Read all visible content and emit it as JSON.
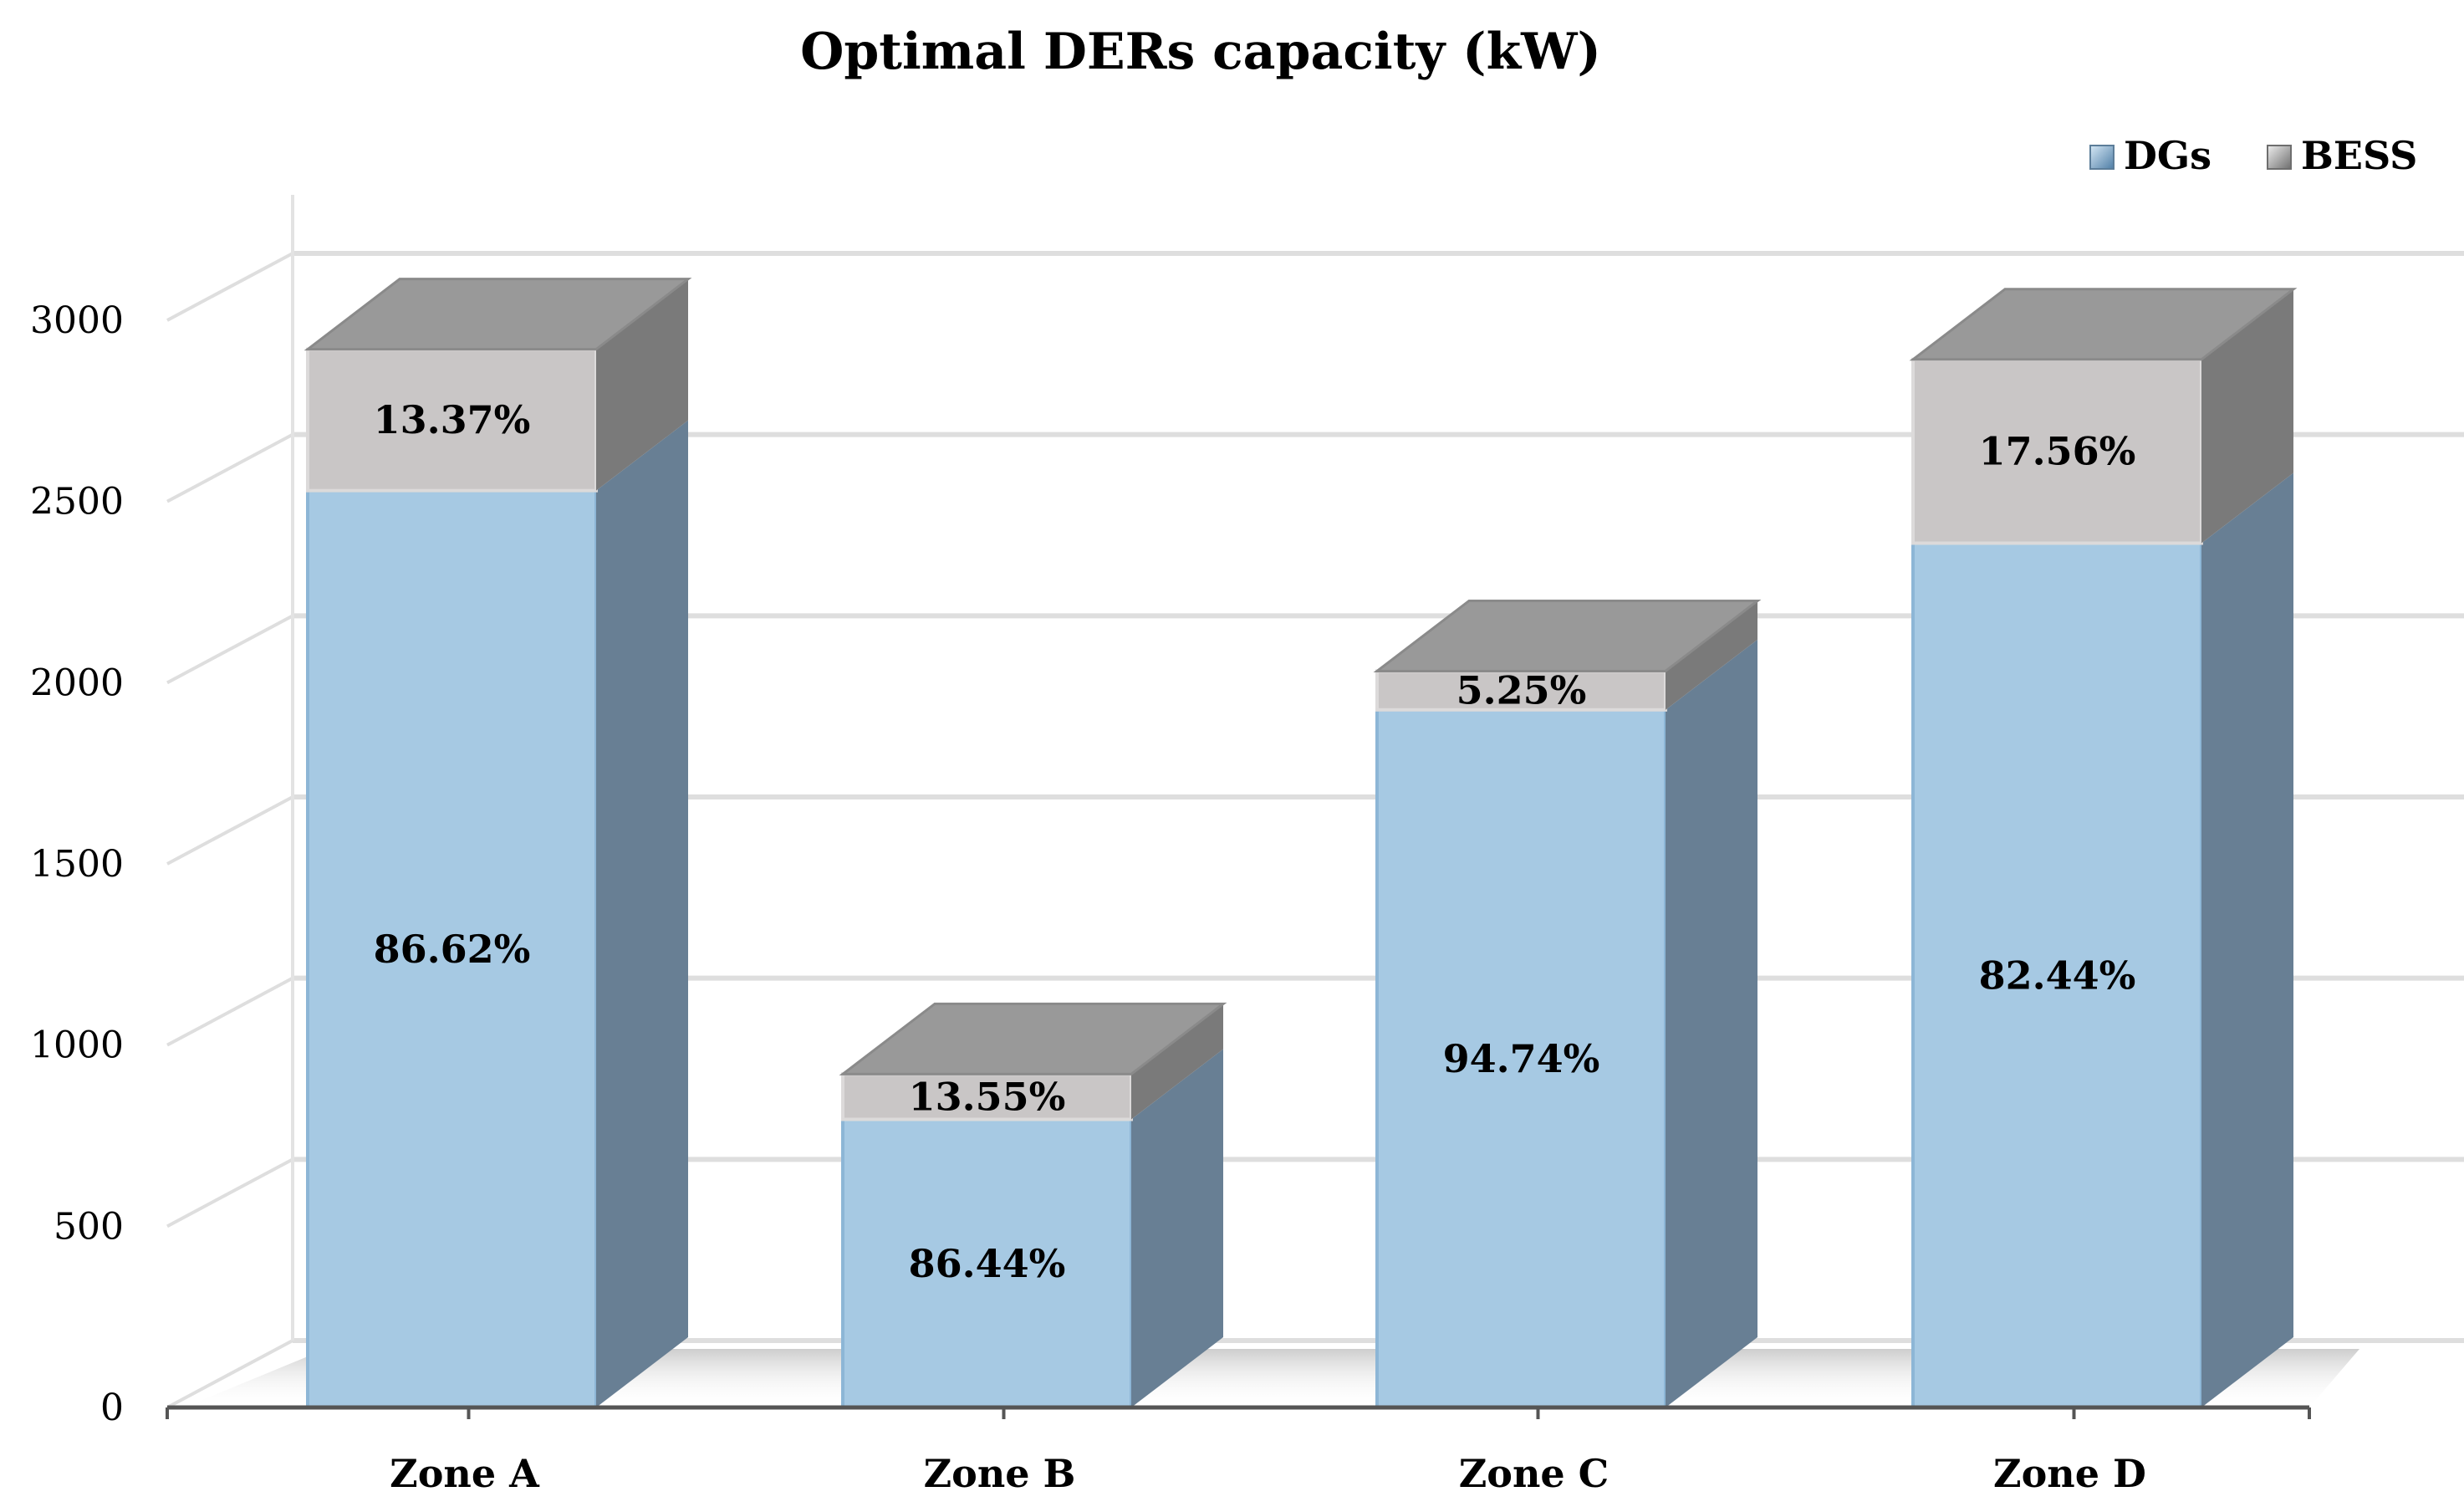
{
  "chart_data": {
    "type": "bar",
    "stacked": true,
    "three_d": true,
    "title": "Optimal DERs capacity (kW)",
    "xlabel": "",
    "ylabel": "",
    "ylim": [
      0,
      3000
    ],
    "yticks": [
      "0",
      "500",
      "1000",
      "1500",
      "2000",
      "2500",
      "3000"
    ],
    "ytick_values": [
      0,
      500,
      1000,
      1500,
      2000,
      2500,
      3000
    ],
    "grid": true,
    "legend_position": "top-right",
    "categories": [
      "Zone A",
      "Zone B",
      "Zone C",
      "Zone D"
    ],
    "series": [
      {
        "name": "DGs",
        "color": "#a6c9e3",
        "side_color": "#687f94",
        "values": [
          2530,
          795,
          1925,
          2385
        ],
        "labels": [
          "86.62%",
          "86.44%",
          "94.74%",
          "82.44%"
        ]
      },
      {
        "name": "BESS",
        "color": "#c9c6c6",
        "side_color": "#7a7a7a",
        "top_color": "#999999",
        "values": [
          390,
          125,
          107,
          507
        ],
        "labels": [
          "13.37%",
          "13.55%",
          "5.25%",
          "17.56%"
        ]
      }
    ]
  }
}
